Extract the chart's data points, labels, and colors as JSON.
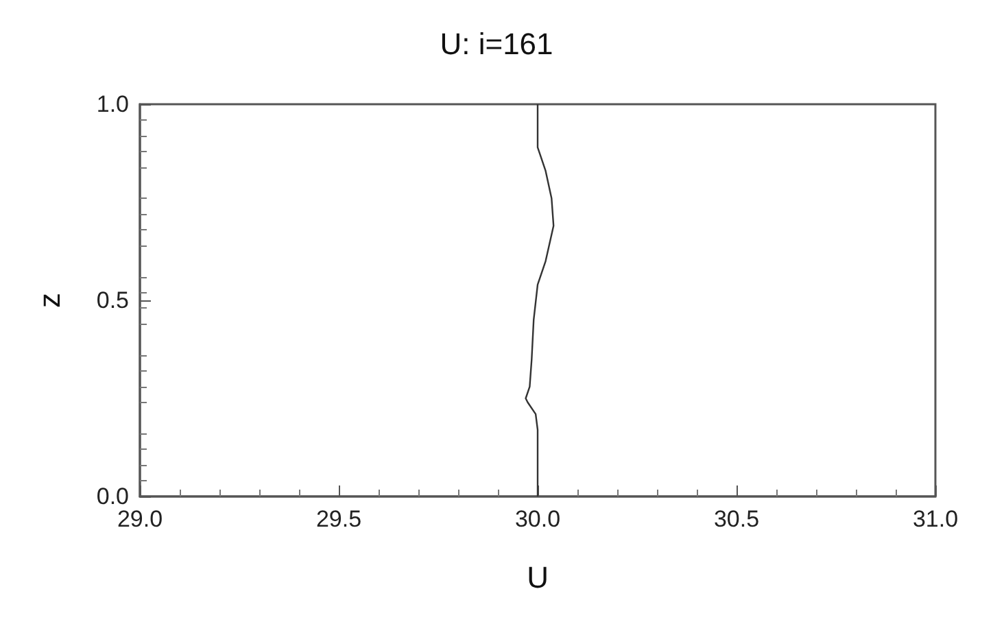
{
  "chart_data": {
    "type": "line",
    "title": "U: i=161",
    "xlabel": "U",
    "ylabel": "z",
    "x": [
      30.0,
      30.0,
      29.995,
      29.975,
      29.97,
      29.98,
      29.985,
      29.99,
      30.0,
      30.02,
      30.04,
      30.035,
      30.02,
      30.0,
      30.0
    ],
    "series": [
      {
        "color": "#333333",
        "values": [
          0,
          0.17,
          0.21,
          0.24,
          0.25,
          0.28,
          0.35,
          0.45,
          0.54,
          0.6,
          0.69,
          0.76,
          0.83,
          0.89,
          1.0
        ]
      }
    ],
    "xlim": [
      29.0,
      31.0
    ],
    "xticks": [
      {
        "value": 29.0,
        "label": "29.0"
      },
      29.5,
      {
        "value": 30.0,
        "label": "30.0"
      },
      30.5,
      {
        "value": 31.0,
        "label": "31.0"
      }
    ],
    "ylim": [
      0.0,
      1.0
    ],
    "yticks": [
      {
        "value": 0,
        "label": "0.0"
      },
      0.5,
      {
        "value": 1,
        "label": "1.0"
      }
    ],
    "grid": false,
    "marker": "none",
    "line_style": "solid"
  }
}
